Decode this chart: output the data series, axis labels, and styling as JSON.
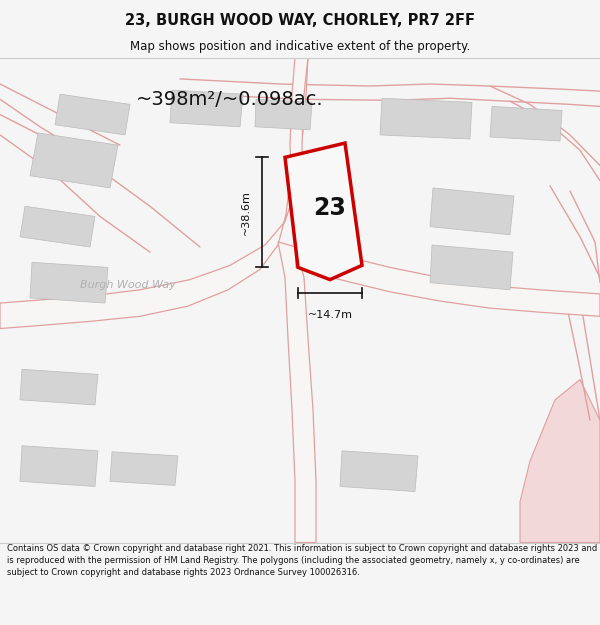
{
  "title": "23, BURGH WOOD WAY, CHORLEY, PR7 2FF",
  "subtitle": "Map shows position and indicative extent of the property.",
  "footer": "Contains OS data © Crown copyright and database right 2021. This information is subject to Crown copyright and database rights 2023 and is reproduced with the permission of HM Land Registry. The polygons (including the associated geometry, namely x, y co-ordinates) are subject to Crown copyright and database rights 2023 Ordnance Survey 100026316.",
  "area_label": "~398m²/~0.098ac.",
  "width_label": "~14.7m",
  "height_label": "~38.6m",
  "number_label": "23",
  "map_bg": "#ebe9e7",
  "road_fill": "#f7f6f5",
  "plot_edge_color": "#cc0000",
  "plot_face_color": "#f5f5f5",
  "building_fill": "#d4d4d4",
  "building_edge": "#bbbbbb",
  "road_line_color": "#e0a0a0",
  "title_color": "#111111",
  "footer_color": "#111111",
  "bg_color": "#f5f5f5",
  "pink_fill": "#f2d8d8",
  "pink_edge": "#e0a0a0",
  "road_darker": "#c89090"
}
